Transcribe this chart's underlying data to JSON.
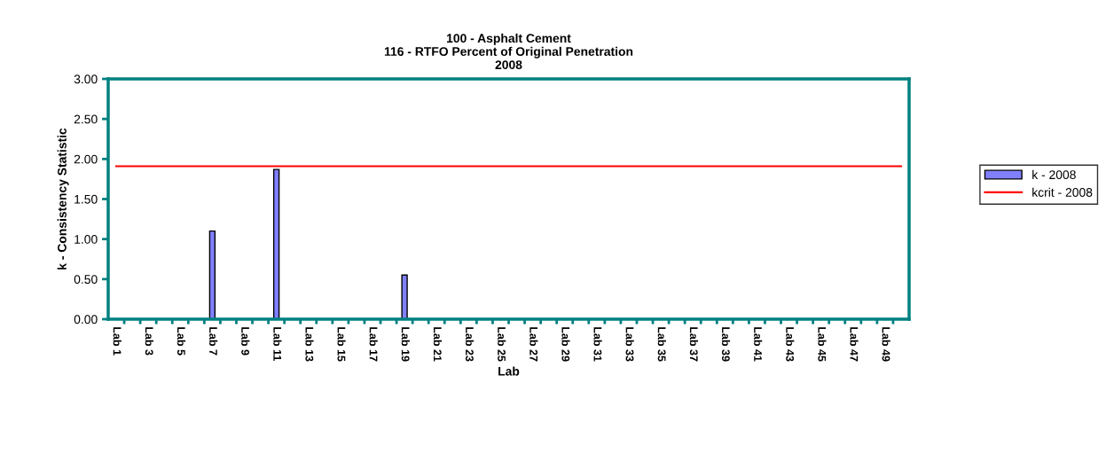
{
  "chart_data": {
    "type": "bar",
    "title": "100 - Asphalt Cement\n116 - RTFO Percent of Original Penetration\n2008",
    "xlabel": "Lab",
    "ylabel": "k - Consistency Statistic",
    "categories": [
      "Lab 1",
      null,
      "Lab 3",
      null,
      "Lab 5",
      null,
      "Lab 7",
      null,
      "Lab 9",
      null,
      "Lab 11",
      null,
      "Lab 13",
      null,
      "Lab 15",
      null,
      "Lab 17",
      null,
      "Lab 19",
      null,
      "Lab 21",
      null,
      "Lab 23",
      null,
      "Lab 25",
      null,
      "Lab 27",
      null,
      "Lab 29",
      null,
      "Lab 31",
      null,
      "Lab 33",
      null,
      "Lab 35",
      null,
      "Lab 37",
      null,
      "Lab 39",
      null,
      "Lab 41",
      null,
      "Lab 43",
      null,
      "Lab 45",
      null,
      "Lab 47",
      null,
      "Lab 49",
      null
    ],
    "series": [
      {
        "name": "k - 2008",
        "color": "#8080ff",
        "values": [
          null,
          null,
          null,
          null,
          null,
          null,
          1.1,
          null,
          null,
          null,
          1.87,
          null,
          null,
          null,
          null,
          null,
          null,
          null,
          0.55,
          null,
          null,
          null,
          null,
          null,
          null,
          null,
          null,
          null,
          null,
          null,
          null,
          null,
          null,
          null,
          null,
          null,
          null,
          null,
          null,
          null,
          null,
          null,
          null,
          null,
          null,
          null,
          null,
          null,
          null,
          null
        ]
      },
      {
        "name": "kcrit - 2008",
        "type": "line",
        "color": "#ff0000",
        "values": [
          1.91,
          1.91,
          1.91,
          1.91,
          1.91,
          1.91,
          1.91,
          1.91,
          1.91,
          1.91,
          1.91,
          1.91,
          1.91,
          1.91,
          1.91,
          1.91,
          1.91,
          1.91,
          1.91,
          1.91,
          1.91,
          1.91,
          1.91,
          1.91,
          1.91,
          1.91,
          1.91,
          1.91,
          1.91,
          1.91,
          1.91,
          1.91,
          1.91,
          1.91,
          1.91,
          1.91,
          1.91,
          1.91,
          1.91,
          1.91,
          1.91,
          1.91,
          1.91,
          1.91,
          1.91,
          1.91,
          1.91,
          1.91,
          1.91,
          1.91
        ]
      }
    ],
    "ylim": [
      0,
      3
    ],
    "yticks": [
      {
        "value": 0,
        "label": "0.00"
      },
      {
        "value": 0.5,
        "label": "0.50"
      },
      {
        "value": 1,
        "label": "1.00"
      },
      {
        "value": 1.5,
        "label": "1.50"
      },
      {
        "value": 2,
        "label": "2.00"
      },
      {
        "value": 2.5,
        "label": "2.50"
      },
      {
        "value": 3,
        "label": "3.00"
      }
    ],
    "grid": false,
    "legend": "right",
    "marker": "none",
    "line_style": "solid"
  }
}
